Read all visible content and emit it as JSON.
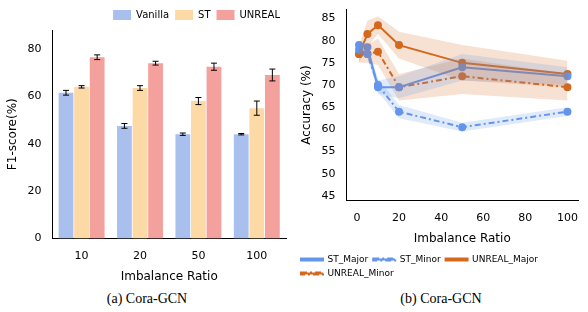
{
  "chart_data": [
    {
      "type": "bar",
      "title": "(a) Cora-GCN",
      "x_label": "Imbalance Ratio",
      "y_label": "F1-score(%)",
      "categories": [
        "10",
        "20",
        "50",
        "100"
      ],
      "series": [
        {
          "name": "Vanilla",
          "color": "#a9c0ef",
          "values": [
            61.5,
            47.5,
            44,
            44
          ],
          "errors": [
            1,
            1,
            0.5,
            0.3
          ]
        },
        {
          "name": "ST",
          "color": "#fdd9a6",
          "values": [
            64,
            63.5,
            58,
            55
          ],
          "errors": [
            0.5,
            1,
            1.5,
            3
          ]
        },
        {
          "name": "UNREAL",
          "color": "#f4a09c",
          "values": [
            76.5,
            74,
            72.5,
            69
          ],
          "errors": [
            1,
            0.8,
            1.5,
            2.5
          ]
        }
      ],
      "ylim": [
        0,
        88
      ],
      "yticks": [
        0,
        20,
        40,
        60,
        80
      ],
      "grid": false,
      "legend": "upper right"
    },
    {
      "type": "line",
      "title": "(b) Cora-GCN",
      "x_label": "Imbalance Ratio",
      "y_label": "Accuracy (%)",
      "x": [
        1,
        5,
        10,
        20,
        50,
        100
      ],
      "series": [
        {
          "name": "ST_Major",
          "color": "#6495ed",
          "marker": "circle",
          "line_style": "solid",
          "values": [
            79,
            78.5,
            69.5,
            69.5,
            74,
            72
          ],
          "std": [
            1,
            1,
            1.5,
            2.5,
            3,
            2
          ]
        },
        {
          "name": "ST_Minor",
          "color": "#6495ed",
          "marker": "circle",
          "line_style": "dashdot",
          "values": [
            78,
            77,
            70,
            64,
            60.5,
            64
          ],
          "std": [
            1,
            1,
            1.5,
            1.5,
            1,
            1
          ]
        },
        {
          "name": "UNREAL_Major",
          "color": "#d2691e",
          "marker": "circle",
          "line_style": "solid",
          "values": [
            77,
            81.5,
            83.5,
            79,
            75,
            72.5
          ],
          "std": [
            2,
            3,
            2,
            3,
            4,
            3
          ]
        },
        {
          "name": "UNREAL_Minor",
          "color": "#d2691e",
          "marker": "circle",
          "line_style": "dashdot",
          "values": [
            77,
            77,
            77.5,
            69.5,
            72,
            69.5
          ],
          "std": [
            2,
            2,
            3,
            3,
            4,
            3
          ]
        }
      ],
      "xlim": [
        -5,
        105
      ],
      "xticks": [
        0,
        20,
        40,
        60,
        80,
        100
      ],
      "ylim": [
        44,
        87
      ],
      "yticks": [
        45,
        50,
        55,
        60,
        65,
        70,
        75,
        80,
        85
      ],
      "grid": false,
      "legend": "lower left"
    }
  ]
}
